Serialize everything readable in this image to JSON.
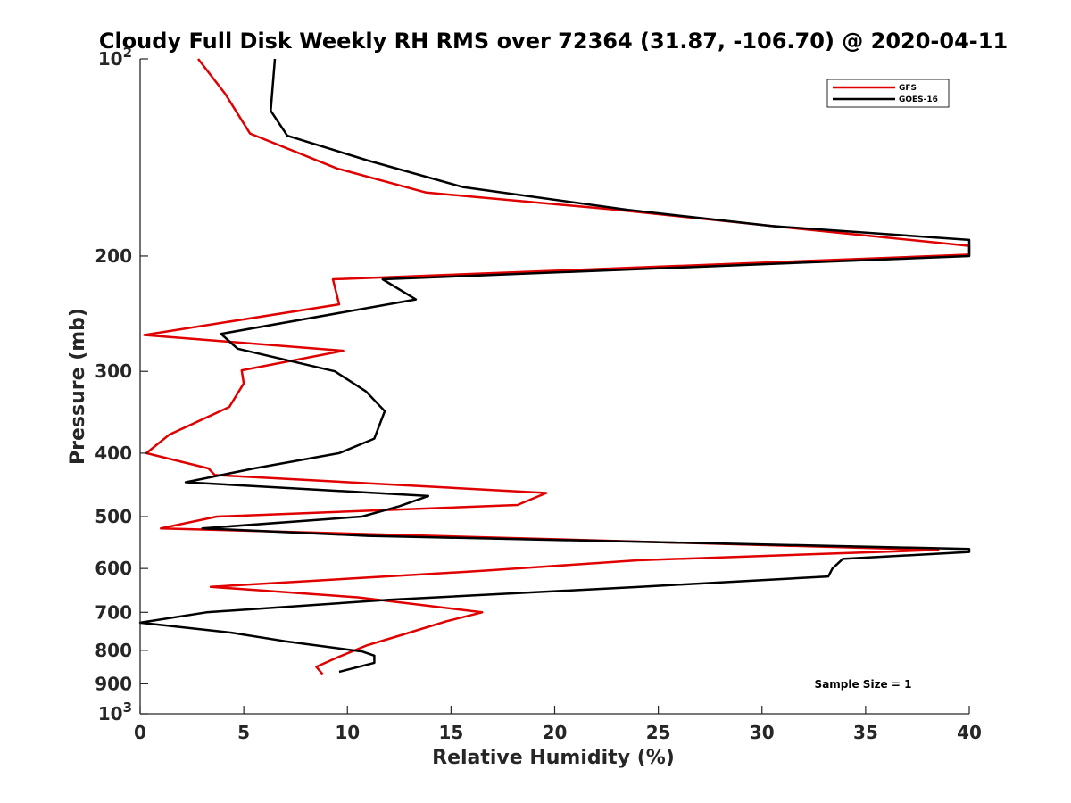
{
  "chart_data": {
    "type": "line",
    "title": "Cloudy Full Disk Weekly RH RMS over 72364 (31.87, -106.70) @ 2020-04-11",
    "xlabel": "Relative Humidity (%)",
    "ylabel": "Pressure (mb)",
    "xlim": [
      0,
      40
    ],
    "ylim": [
      100,
      1000
    ],
    "y_scale": "log",
    "y_reversed": true,
    "x_ticks": [
      0,
      5,
      10,
      15,
      20,
      25,
      30,
      35,
      40
    ],
    "x_tick_labels": [
      "0",
      "5",
      "10",
      "15",
      "20",
      "25",
      "30",
      "35",
      "40"
    ],
    "y_ticks": [
      100,
      200,
      300,
      400,
      500,
      600,
      700,
      800,
      900,
      1000
    ],
    "y_tick_labels": [
      {
        "base": "10",
        "sup": "2"
      },
      {
        "base": "200",
        "sup": ""
      },
      {
        "base": "300",
        "sup": ""
      },
      {
        "base": "400",
        "sup": ""
      },
      {
        "base": "500",
        "sup": ""
      },
      {
        "base": "600",
        "sup": ""
      },
      {
        "base": "700",
        "sup": ""
      },
      {
        "base": "800",
        "sup": ""
      },
      {
        "base": "900",
        "sup": ""
      },
      {
        "base": "10",
        "sup": "3"
      }
    ],
    "grid": false,
    "legend_position": "top-right",
    "series": [
      {
        "name": "GFS",
        "color": "#e00000",
        "points": [
          [
            2.8,
            100
          ],
          [
            4.1,
            113
          ],
          [
            5.3,
            130
          ],
          [
            9.5,
            147
          ],
          [
            13.8,
            160
          ],
          [
            23.0,
            170
          ],
          [
            32.0,
            182
          ],
          [
            40.0,
            193
          ],
          [
            40.0,
            199
          ],
          [
            9.3,
            217
          ],
          [
            9.6,
            237
          ],
          [
            0.2,
            264
          ],
          [
            9.8,
            279
          ],
          [
            4.9,
            299
          ],
          [
            5.0,
            313
          ],
          [
            4.3,
            340
          ],
          [
            1.4,
            375
          ],
          [
            0.3,
            400
          ],
          [
            3.3,
            422
          ],
          [
            3.6,
            432
          ],
          [
            19.6,
            460
          ],
          [
            18.2,
            480
          ],
          [
            3.7,
            500
          ],
          [
            1.0,
            521
          ],
          [
            38.5,
            562
          ],
          [
            24.0,
            583
          ],
          [
            16.5,
            605
          ],
          [
            3.4,
            640
          ],
          [
            10.5,
            664
          ],
          [
            16.5,
            700
          ],
          [
            14.8,
            722
          ],
          [
            12.5,
            760
          ],
          [
            10.9,
            787
          ],
          [
            9.6,
            818
          ],
          [
            8.5,
            848
          ],
          [
            8.8,
            870
          ]
        ]
      },
      {
        "name": "GOES-16",
        "color": "#000000",
        "points": [
          [
            6.5,
            100
          ],
          [
            6.3,
            120
          ],
          [
            7.1,
            131
          ],
          [
            11.0,
            143
          ],
          [
            15.6,
            157
          ],
          [
            23.5,
            170
          ],
          [
            30.5,
            180
          ],
          [
            40.0,
            189
          ],
          [
            40.0,
            200
          ],
          [
            11.7,
            217
          ],
          [
            13.3,
            233
          ],
          [
            3.9,
            263
          ],
          [
            4.7,
            277
          ],
          [
            9.4,
            300
          ],
          [
            10.9,
            322
          ],
          [
            11.8,
            345
          ],
          [
            11.3,
            380
          ],
          [
            9.6,
            400
          ],
          [
            5.5,
            422
          ],
          [
            2.2,
            443
          ],
          [
            13.9,
            465
          ],
          [
            12.5,
            482
          ],
          [
            10.7,
            500
          ],
          [
            3.0,
            521
          ],
          [
            11.0,
            535
          ],
          [
            40.0,
            560
          ],
          [
            40.0,
            566
          ],
          [
            33.9,
            580
          ],
          [
            33.4,
            600
          ],
          [
            33.2,
            617
          ],
          [
            24.1,
            640
          ],
          [
            12.0,
            670
          ],
          [
            3.2,
            700
          ],
          [
            0.0,
            726
          ],
          [
            4.4,
            752
          ],
          [
            7.0,
            775
          ],
          [
            10.7,
            803
          ],
          [
            11.3,
            815
          ],
          [
            11.3,
            836
          ],
          [
            9.6,
            863
          ]
        ]
      }
    ],
    "annotation": "Sample Size = 1"
  }
}
